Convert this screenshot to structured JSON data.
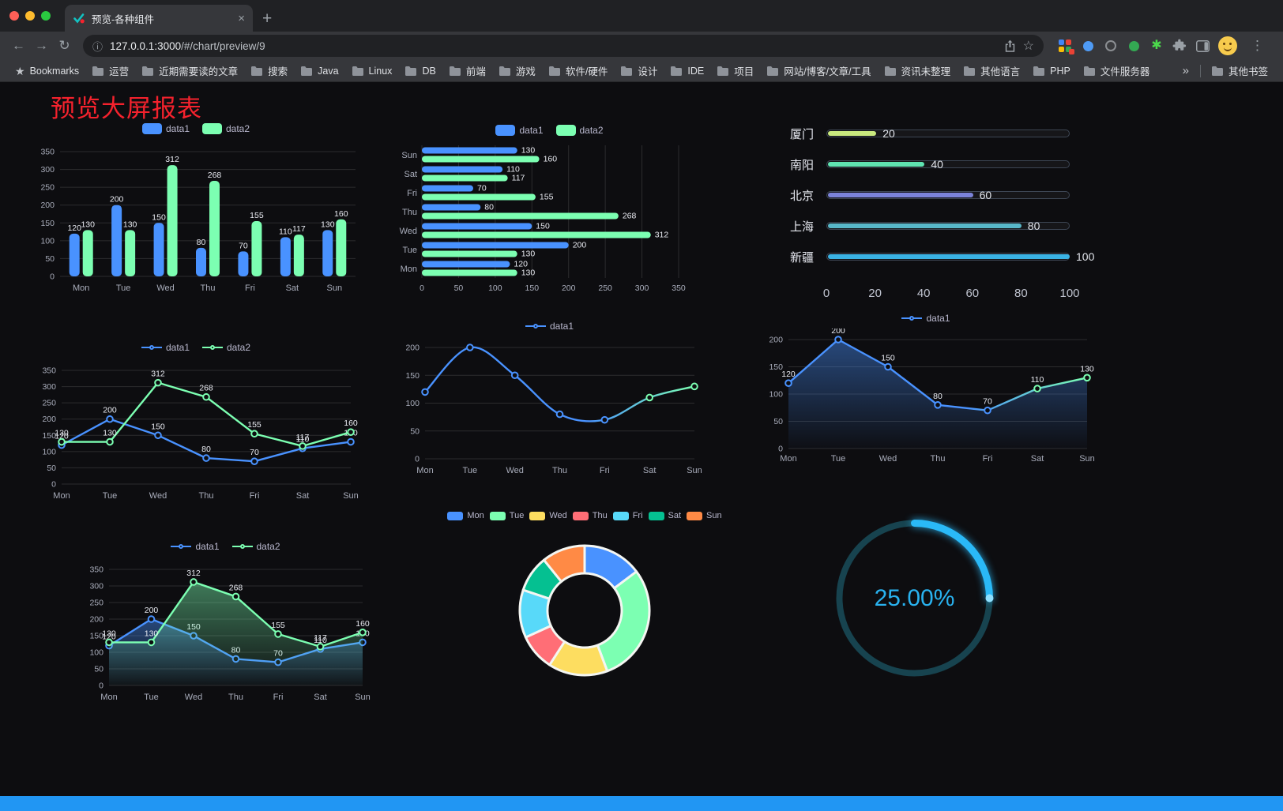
{
  "window": {
    "tab_title": "预览-各种组件",
    "url_host": "127.0.0.1:3000",
    "url_path": "/#/chart/preview/9",
    "glyphs": {
      "back": "←",
      "forward": "→",
      "reload": "↻",
      "info": "ⓘ",
      "bookmark_star": "☆",
      "plus": "+",
      "close": "×",
      "kebab": "⋮",
      "sparkle": "✱"
    },
    "traffic_light_colors": [
      "#ff5f57",
      "#febc2e",
      "#2ac840"
    ]
  },
  "bookmarks": {
    "root_label": "Bookmarks",
    "star_glyph": "★",
    "folders": [
      "运营",
      "近期需要读的文章",
      "搜索",
      "Java",
      "Linux",
      "DB",
      "前端",
      "游戏",
      "软件/硬件",
      "设计",
      "IDE",
      "项目",
      "网站/博客/文章/工具",
      "资讯未整理",
      "其他语言",
      "PHP",
      "文件服务器"
    ],
    "overflow_glyph": "»",
    "other_label": "其他书签"
  },
  "page": {
    "title": "预览大屏报表",
    "title_color": "#f5222d",
    "background": "#0d0d10",
    "footer_color": "#2196f3"
  },
  "chart_data": [
    {
      "id": "bar-vertical",
      "type": "bar",
      "categories": [
        "Mon",
        "Tue",
        "Wed",
        "Thu",
        "Fri",
        "Sat",
        "Sun"
      ],
      "series": [
        {
          "name": "data1",
          "color": "#4992ff",
          "values": [
            120,
            200,
            150,
            80,
            70,
            110,
            130
          ]
        },
        {
          "name": "data2",
          "color": "#7cffb2",
          "values": [
            130,
            130,
            312,
            268,
            155,
            117,
            160
          ]
        }
      ],
      "ylim": [
        0,
        350
      ],
      "ytick": 50,
      "grid": true,
      "legend_position": "top",
      "legend_marker": "rect",
      "labels": true
    },
    {
      "id": "bar-horizontal",
      "type": "bar-horizontal",
      "categories": [
        "Mon",
        "Tue",
        "Wed",
        "Thu",
        "Fri",
        "Sat",
        "Sun"
      ],
      "series": [
        {
          "name": "data1",
          "color": "#4992ff",
          "values": [
            120,
            200,
            150,
            80,
            70,
            110,
            130
          ]
        },
        {
          "name": "data2",
          "color": "#7cffb2",
          "values": [
            130,
            130,
            312,
            268,
            155,
            117,
            160
          ]
        }
      ],
      "xlim": [
        0,
        350
      ],
      "xtick": 50,
      "grid": true,
      "legend_position": "top",
      "legend_marker": "rect",
      "labels": true
    },
    {
      "id": "city-progress",
      "type": "progress",
      "max": 100,
      "items": [
        {
          "label": "厦门",
          "value": 20,
          "color": "#c9e97e"
        },
        {
          "label": "南阳",
          "value": 40,
          "color": "#5fe3b1"
        },
        {
          "label": "北京",
          "value": 60,
          "color": "#7b83d9"
        },
        {
          "label": "上海",
          "value": 80,
          "color": "#58b7c9"
        },
        {
          "label": "新疆",
          "value": 100,
          "color": "#3ab2e4"
        }
      ],
      "axis_ticks": [
        0,
        20,
        40,
        60,
        80,
        100
      ]
    },
    {
      "id": "line-two",
      "type": "line",
      "categories": [
        "Mon",
        "Tue",
        "Wed",
        "Thu",
        "Fri",
        "Sat",
        "Sun"
      ],
      "series": [
        {
          "name": "data1",
          "color": "#4992ff",
          "values": [
            120,
            200,
            150,
            80,
            70,
            110,
            130
          ]
        },
        {
          "name": "data2",
          "color": "#7cffb2",
          "values": [
            130,
            130,
            312,
            268,
            155,
            117,
            160
          ]
        }
      ],
      "ylim": [
        0,
        350
      ],
      "ytick": 50,
      "smooth": false,
      "labels": true,
      "area": false,
      "legend_marker": "line"
    },
    {
      "id": "line-smooth",
      "type": "line",
      "categories": [
        "Mon",
        "Tue",
        "Wed",
        "Thu",
        "Fri",
        "Sat",
        "Sun"
      ],
      "series": [
        {
          "name": "data1",
          "color": "#4992ff",
          "color_end": "#7cffb2",
          "values": [
            120,
            200,
            150,
            80,
            70,
            110,
            130
          ]
        }
      ],
      "ylim": [
        0,
        200
      ],
      "ytick": 50,
      "smooth": true,
      "labels": false,
      "area": false,
      "legend_marker": "line"
    },
    {
      "id": "line-area",
      "type": "line",
      "categories": [
        "Mon",
        "Tue",
        "Wed",
        "Thu",
        "Fri",
        "Sat",
        "Sun"
      ],
      "series": [
        {
          "name": "data1",
          "color": "#4992ff",
          "color_end": "#7cffb2",
          "values": [
            120,
            200,
            150,
            80,
            70,
            110,
            130
          ]
        }
      ],
      "ylim": [
        0,
        200
      ],
      "ytick": 50,
      "smooth": false,
      "labels": true,
      "area": true,
      "legend_marker": "line"
    },
    {
      "id": "line-two-area",
      "type": "line",
      "categories": [
        "Mon",
        "Tue",
        "Wed",
        "Thu",
        "Fri",
        "Sat",
        "Sun"
      ],
      "series": [
        {
          "name": "data1",
          "color": "#4992ff",
          "values": [
            120,
            200,
            150,
            80,
            70,
            110,
            130
          ]
        },
        {
          "name": "data2",
          "color": "#7cffb2",
          "values": [
            130,
            130,
            312,
            268,
            155,
            117,
            160
          ]
        }
      ],
      "ylim": [
        0,
        350
      ],
      "ytick": 50,
      "smooth": false,
      "labels": true,
      "area": true,
      "legend_marker": "line"
    },
    {
      "id": "weekday-donut",
      "type": "pie",
      "shape": "donut",
      "items": [
        {
          "name": "Mon",
          "value": 130,
          "color": "#4992ff"
        },
        {
          "name": "Tue",
          "value": 260,
          "color": "#7cffb2"
        },
        {
          "name": "Wed",
          "value": 130,
          "color": "#fddd60"
        },
        {
          "name": "Thu",
          "value": 80,
          "color": "#ff6e76"
        },
        {
          "name": "Fri",
          "value": 105,
          "color": "#58d9f9"
        },
        {
          "name": "Sat",
          "value": 80,
          "color": "#05c091"
        },
        {
          "name": "Sun",
          "value": 95,
          "color": "#ff8a45"
        }
      ],
      "legend_position": "top"
    },
    {
      "id": "ring-gauge",
      "type": "progress-ring",
      "value": 25,
      "label": "25.00%",
      "color": "#2ab9f7",
      "track_color": "#17434f"
    }
  ]
}
